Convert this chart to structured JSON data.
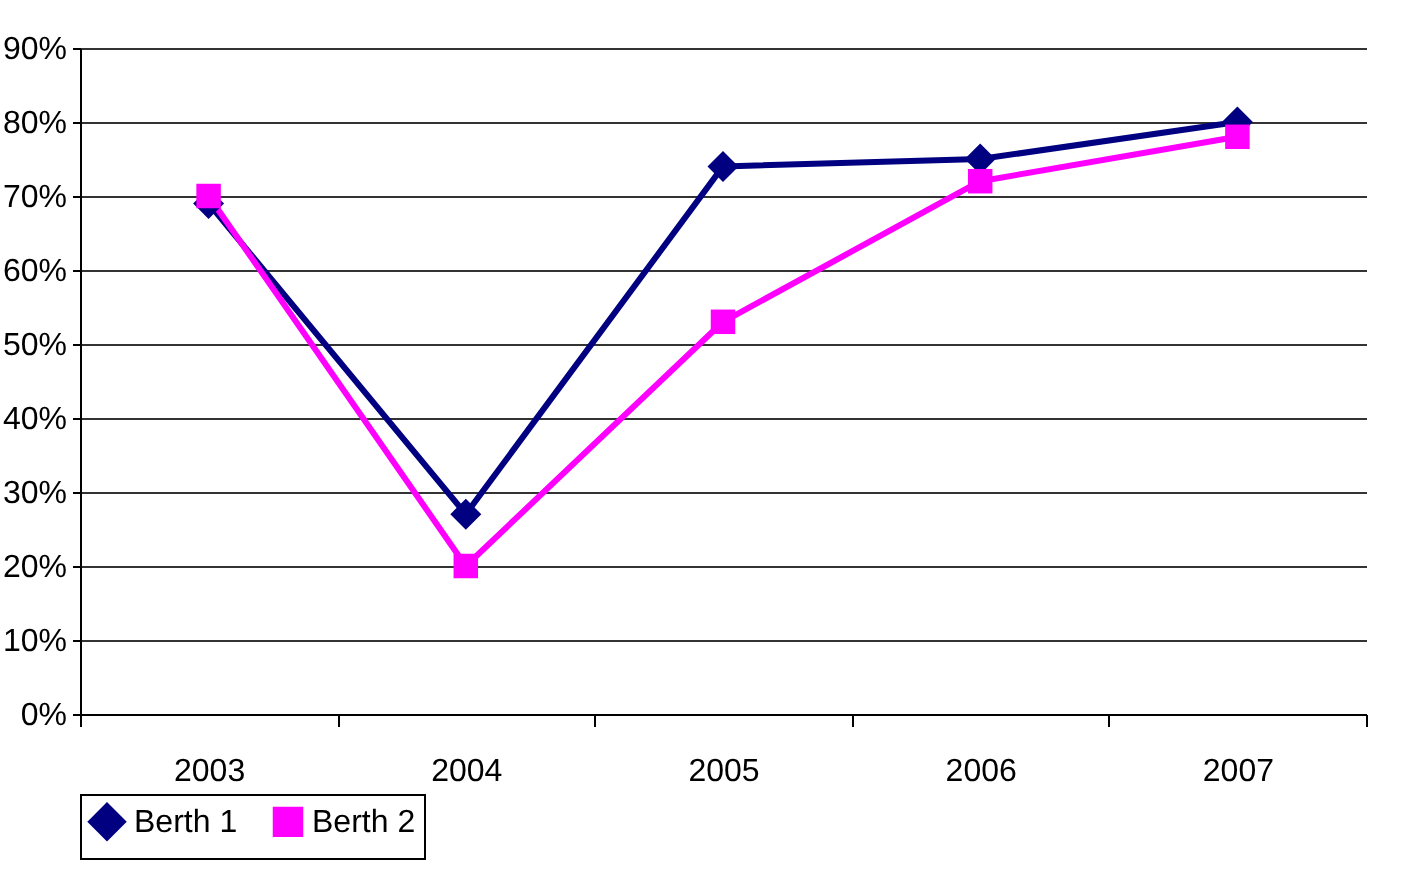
{
  "chart_data": {
    "type": "line",
    "categories": [
      "2003",
      "2004",
      "2005",
      "2006",
      "2007"
    ],
    "series": [
      {
        "name": "Berth 1",
        "color": "#000080",
        "marker": "diamond",
        "values": [
          69,
          27,
          74,
          75,
          80
        ]
      },
      {
        "name": "Berth 2",
        "color": "#ff00ff",
        "marker": "square",
        "values": [
          70,
          20,
          53,
          72,
          78
        ]
      }
    ],
    "ylim": [
      0,
      90
    ],
    "yticks": [
      {
        "value": 0,
        "label": "0%"
      },
      {
        "value": 10,
        "label": "10%"
      },
      {
        "value": 20,
        "label": "20%"
      },
      {
        "value": 30,
        "label": "30%"
      },
      {
        "value": 40,
        "label": "40%"
      },
      {
        "value": 50,
        "label": "50%"
      },
      {
        "value": 60,
        "label": "60%"
      },
      {
        "value": 70,
        "label": "70%"
      },
      {
        "value": 80,
        "label": "80%"
      },
      {
        "value": 90,
        "label": "90%"
      }
    ],
    "grid": "y",
    "legend": "bottom",
    "line_style": "solid"
  }
}
